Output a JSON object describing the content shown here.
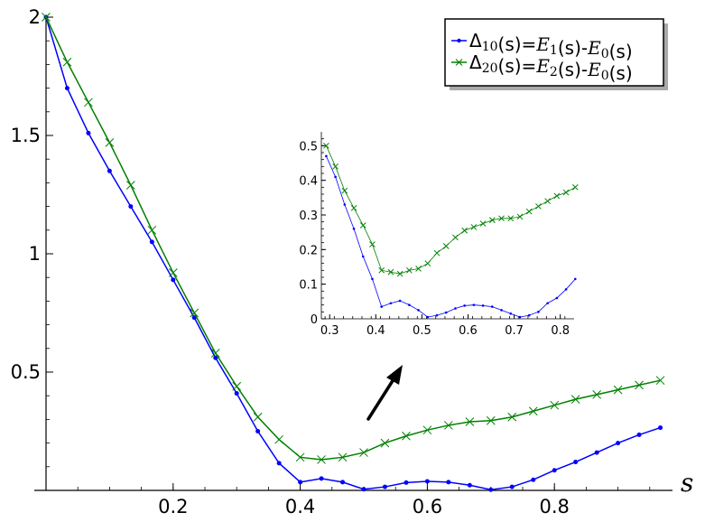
{
  "chart_data": [
    {
      "type": "line",
      "title": "",
      "xlabel": "s",
      "ylabel": "",
      "xlim": [
        0,
        1
      ],
      "ylim": [
        0,
        2
      ],
      "x_ticks": [
        "0.2",
        "0.4",
        "0.6",
        "0.8"
      ],
      "x_tick_values": [
        0.2,
        0.4,
        0.6,
        0.8
      ],
      "y_ticks": [
        "2",
        "1.5",
        "1",
        "0.5"
      ],
      "y_tick_values": [
        2,
        1.5,
        1,
        0.5
      ],
      "grid": false,
      "legend_position": "top-right",
      "x": [
        0,
        0.0333,
        0.0667,
        0.1,
        0.1333,
        0.1667,
        0.2,
        0.2333,
        0.2667,
        0.3,
        0.3333,
        0.3667,
        0.4,
        0.4333,
        0.4667,
        0.5,
        0.5333,
        0.5667,
        0.6,
        0.6333,
        0.6667,
        0.7,
        0.7333,
        0.7667,
        0.8,
        0.8333,
        0.8667,
        0.9,
        0.9333,
        0.9667
      ],
      "series": [
        {
          "name": "Δ10(s)=E1(s)-E0(s)",
          "color": "#0000ff",
          "marker": "dot",
          "values": [
            2.0,
            1.7,
            1.51,
            1.35,
            1.2,
            1.05,
            0.89,
            0.73,
            0.56,
            0.41,
            0.25,
            0.115,
            0.035,
            0.05,
            0.035,
            0.005,
            0.015,
            0.033,
            0.038,
            0.035,
            0.022,
            0.003,
            0.015,
            0.045,
            0.085,
            0.12,
            0.16,
            0.2,
            0.235,
            0.265
          ]
        },
        {
          "name": "Δ20(s)=E2(s)-E0(s)",
          "color": "#008000",
          "marker": "x",
          "values": [
            2.0,
            1.81,
            1.64,
            1.47,
            1.29,
            1.1,
            0.92,
            0.75,
            0.58,
            0.44,
            0.31,
            0.215,
            0.14,
            0.13,
            0.14,
            0.16,
            0.2,
            0.23,
            0.255,
            0.275,
            0.29,
            0.295,
            0.31,
            0.335,
            0.36,
            0.385,
            0.405,
            0.425,
            0.445,
            0.465
          ]
        }
      ]
    },
    {
      "type": "line",
      "title": "",
      "xlim": [
        0.28,
        0.83
      ],
      "ylim": [
        0,
        0.54
      ],
      "x_ticks": [
        "0.3",
        "0.4",
        "0.5",
        "0.6",
        "0.7",
        "0.8"
      ],
      "x_tick_values": [
        0.3,
        0.4,
        0.5,
        0.6,
        0.7,
        0.8
      ],
      "y_ticks": [
        "0",
        "0.1",
        "0.2",
        "0.3",
        "0.4",
        "0.5"
      ],
      "y_tick_values": [
        0,
        0.1,
        0.2,
        0.3,
        0.4,
        0.5
      ],
      "x": [
        0.2925,
        0.3125,
        0.3325,
        0.3525,
        0.3725,
        0.3925,
        0.4125,
        0.4325,
        0.4525,
        0.4725,
        0.4925,
        0.5125,
        0.5325,
        0.5525,
        0.5725,
        0.5925,
        0.6125,
        0.6325,
        0.6525,
        0.6725,
        0.6925,
        0.7125,
        0.7325,
        0.7525,
        0.7725,
        0.7925,
        0.8125,
        0.8325
      ],
      "series": [
        {
          "name": "Δ10",
          "color": "#0000ff",
          "marker": "dot",
          "values": [
            0.47,
            0.41,
            0.33,
            0.26,
            0.18,
            0.115,
            0.035,
            0.045,
            0.052,
            0.04,
            0.025,
            0.005,
            0.01,
            0.018,
            0.03,
            0.038,
            0.04,
            0.038,
            0.035,
            0.025,
            0.015,
            0.005,
            0.01,
            0.02,
            0.045,
            0.06,
            0.085,
            0.115
          ]
        },
        {
          "name": "Δ20",
          "color": "#008000",
          "marker": "x",
          "values": [
            0.5,
            0.44,
            0.37,
            0.32,
            0.27,
            0.215,
            0.14,
            0.135,
            0.13,
            0.14,
            0.145,
            0.16,
            0.19,
            0.21,
            0.235,
            0.255,
            0.265,
            0.275,
            0.285,
            0.29,
            0.29,
            0.295,
            0.31,
            0.325,
            0.34,
            0.355,
            0.365,
            0.38
          ]
        }
      ]
    }
  ],
  "legend": {
    "items": [
      {
        "prefix": "Δ",
        "sub1": "10",
        "mid": "(s)=",
        "var1": "E",
        "sub2": "1",
        "mid2": "(s)-",
        "var2": "E",
        "sub3": "0",
        "suffix": "(s)",
        "color": "#0000ff",
        "marker": "dot"
      },
      {
        "prefix": "Δ",
        "sub1": "20",
        "mid": "(s)=",
        "var1": "E",
        "sub2": "2",
        "mid2": "(s)-",
        "var2": "E",
        "sub3": "0",
        "suffix": "(s)",
        "color": "#008000",
        "marker": "x"
      }
    ]
  },
  "arrow_color": "#000000"
}
